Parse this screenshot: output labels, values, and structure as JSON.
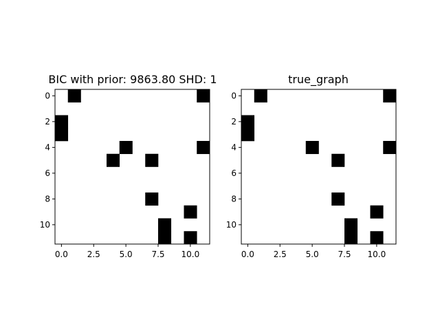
{
  "chart_data": [
    {
      "type": "heatmap",
      "title": "BIC with prior: 9863.80 SHD: 1",
      "n": 12,
      "cell_color": "#000000",
      "background": "#ffffff",
      "x_ticks": [
        0,
        2.5,
        5,
        7.5,
        10
      ],
      "x_tick_labels": [
        "0.0",
        "2.5",
        "5.0",
        "7.5",
        "10.0"
      ],
      "y_ticks": [
        0,
        2,
        4,
        6,
        8,
        10
      ],
      "y_tick_labels": [
        "0",
        "2",
        "4",
        "6",
        "8",
        "10"
      ],
      "cells": [
        [
          0,
          1
        ],
        [
          0,
          11
        ],
        [
          2,
          0
        ],
        [
          3,
          0
        ],
        [
          4,
          5
        ],
        [
          4,
          11
        ],
        [
          5,
          4
        ],
        [
          5,
          7
        ],
        [
          8,
          7
        ],
        [
          9,
          10
        ],
        [
          10,
          8
        ],
        [
          11,
          8
        ],
        [
          11,
          10
        ]
      ]
    },
    {
      "type": "heatmap",
      "title": "true_graph",
      "n": 12,
      "cell_color": "#000000",
      "background": "#ffffff",
      "x_ticks": [
        0,
        2.5,
        5,
        7.5,
        10
      ],
      "x_tick_labels": [
        "0.0",
        "2.5",
        "5.0",
        "7.5",
        "10.0"
      ],
      "y_ticks": [
        0,
        2,
        4,
        6,
        8,
        10
      ],
      "y_tick_labels": [
        "0",
        "2",
        "4",
        "6",
        "8",
        "10"
      ],
      "cells": [
        [
          0,
          1
        ],
        [
          0,
          11
        ],
        [
          2,
          0
        ],
        [
          3,
          0
        ],
        [
          4,
          5
        ],
        [
          4,
          11
        ],
        [
          5,
          7
        ],
        [
          8,
          7
        ],
        [
          9,
          10
        ],
        [
          10,
          8
        ],
        [
          11,
          8
        ],
        [
          11,
          10
        ]
      ]
    }
  ]
}
